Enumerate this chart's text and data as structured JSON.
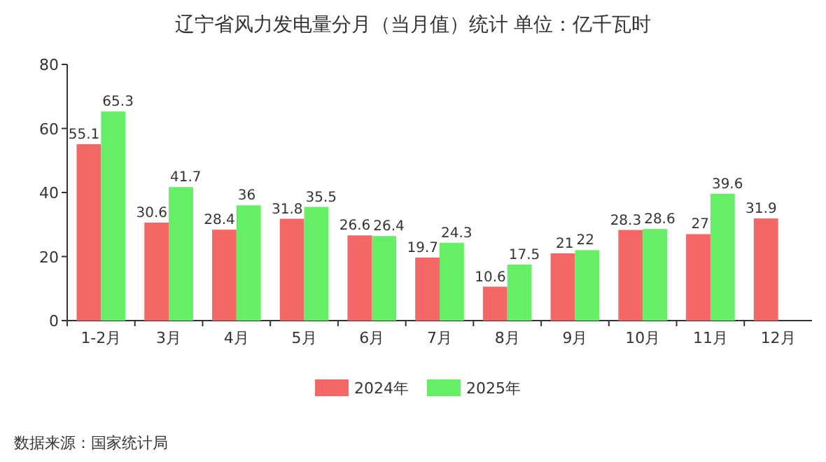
{
  "chart_data": {
    "type": "bar",
    "title": "辽宁省风力发电量分月（当月值）统计 单位：亿千瓦时",
    "categories": [
      "1-2月",
      "3月",
      "4月",
      "5月",
      "6月",
      "7月",
      "8月",
      "9月",
      "10月",
      "11月",
      "12月"
    ],
    "series": [
      {
        "name": "2024年",
        "color": "#f56767",
        "values": [
          55.1,
          30.6,
          28.4,
          31.8,
          26.6,
          19.7,
          10.6,
          21,
          28.3,
          27,
          31.9
        ]
      },
      {
        "name": "2025年",
        "color": "#66ee66",
        "values": [
          65.3,
          41.7,
          36,
          35.5,
          26.4,
          24.3,
          17.5,
          22,
          28.6,
          39.6,
          null
        ]
      }
    ],
    "ylim": [
      0,
      80
    ],
    "yticks": [
      0,
      20,
      40,
      60,
      80
    ],
    "data_labels": true,
    "legend": "bottom",
    "grid": false,
    "annotations": [
      "数据来源：国家统计局"
    ]
  }
}
